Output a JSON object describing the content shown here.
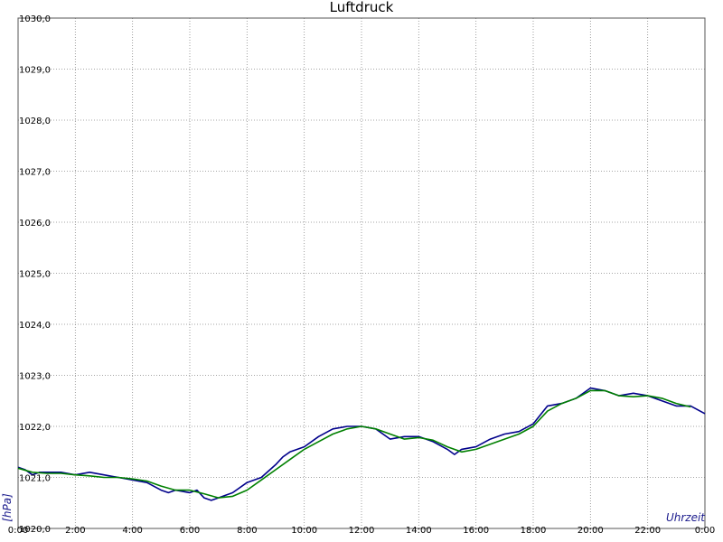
{
  "chart_data": {
    "type": "line",
    "title": "Luftdruck",
    "xlabel": "Uhrzeit",
    "ylabel": "[hPa]",
    "xlim": [
      0,
      24
    ],
    "ylim": [
      1020.0,
      1030.0
    ],
    "grid": true,
    "x_tick_labels": [
      "0:00",
      "2:00",
      "4:00",
      "6:00",
      "8:00",
      "10:00",
      "12:00",
      "14:00",
      "16:00",
      "18:00",
      "20:00",
      "22:00",
      "0:00"
    ],
    "y_tick_labels": [
      "1020,0",
      "1021,0",
      "1022,0",
      "1023,0",
      "1024,0",
      "1025,0",
      "1026,0",
      "1027,0",
      "1028,0",
      "1029,0",
      "1030,0"
    ],
    "series": [
      {
        "color": "#00008b",
        "x": [
          0.0,
          0.25,
          0.5,
          0.75,
          1.0,
          1.5,
          2.0,
          2.5,
          3.0,
          3.5,
          4.0,
          4.5,
          5.0,
          5.25,
          5.5,
          6.0,
          6.25,
          6.5,
          6.75,
          7.0,
          7.25,
          7.5,
          8.0,
          8.5,
          9.0,
          9.25,
          9.5,
          10.0,
          10.5,
          11.0,
          11.5,
          12.0,
          12.5,
          13.0,
          13.5,
          14.0,
          14.5,
          15.0,
          15.25,
          15.5,
          16.0,
          16.5,
          17.0,
          17.5,
          18.0,
          18.5,
          19.0,
          19.5,
          20.0,
          20.5,
          21.0,
          21.5,
          22.0,
          22.5,
          23.0,
          23.5,
          24.0
        ],
        "y": [
          1021.2,
          1021.15,
          1021.05,
          1021.1,
          1021.1,
          1021.1,
          1021.05,
          1021.1,
          1021.05,
          1021.0,
          1020.95,
          1020.9,
          1020.75,
          1020.7,
          1020.75,
          1020.7,
          1020.75,
          1020.6,
          1020.55,
          1020.6,
          1020.65,
          1020.7,
          1020.9,
          1021.0,
          1021.25,
          1021.4,
          1021.5,
          1021.6,
          1021.8,
          1021.95,
          1022.0,
          1022.0,
          1021.95,
          1021.75,
          1021.8,
          1021.8,
          1021.7,
          1021.55,
          1021.45,
          1021.55,
          1021.6,
          1021.75,
          1021.85,
          1021.9,
          1022.05,
          1022.4,
          1022.45,
          1022.55,
          1022.75,
          1022.7,
          1022.6,
          1022.65,
          1022.6,
          1022.5,
          1022.4,
          1022.4,
          1022.25
        ]
      },
      {
        "color": "#008000",
        "x": [
          0.0,
          0.5,
          1.0,
          1.5,
          2.0,
          2.5,
          3.0,
          3.5,
          4.0,
          4.5,
          5.0,
          5.5,
          6.0,
          6.5,
          7.0,
          7.5,
          8.0,
          8.5,
          9.0,
          9.5,
          10.0,
          10.5,
          11.0,
          11.5,
          12.0,
          12.5,
          13.0,
          13.5,
          14.0,
          14.5,
          15.0,
          15.5,
          16.0,
          16.5,
          17.0,
          17.5,
          18.0,
          18.5,
          19.0,
          19.5,
          20.0,
          20.5,
          21.0,
          21.5,
          22.0,
          22.5,
          23.0,
          23.5
        ],
        "y": [
          1021.18,
          1021.1,
          1021.08,
          1021.08,
          1021.05,
          1021.03,
          1021.0,
          1021.0,
          1020.97,
          1020.93,
          1020.83,
          1020.75,
          1020.75,
          1020.68,
          1020.6,
          1020.63,
          1020.75,
          1020.95,
          1021.15,
          1021.35,
          1021.55,
          1021.7,
          1021.85,
          1021.95,
          1022.0,
          1021.95,
          1021.85,
          1021.75,
          1021.78,
          1021.73,
          1021.6,
          1021.5,
          1021.55,
          1021.65,
          1021.75,
          1021.85,
          1022.0,
          1022.3,
          1022.45,
          1022.55,
          1022.7,
          1022.7,
          1022.6,
          1022.58,
          1022.6,
          1022.55,
          1022.45,
          1022.38
        ]
      }
    ]
  }
}
